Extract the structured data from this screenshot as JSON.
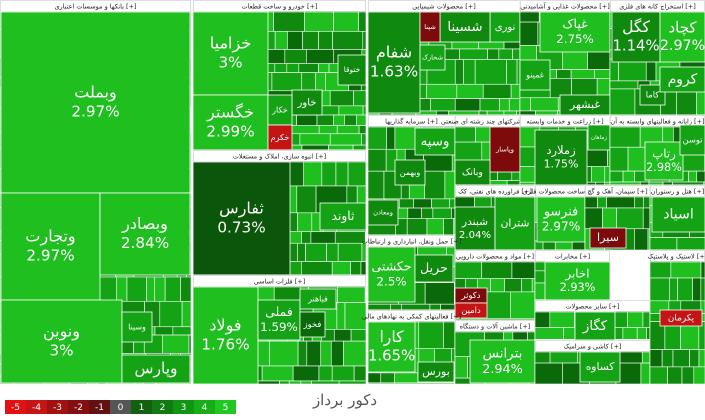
{
  "sectors": [
    {
      "title": "بانکها و موسسات اعتباری [+]",
      "tiles": [
        {
          "name": "وبملت",
          "change": "2.97%"
        },
        {
          "name": "وتجارت",
          "change": "2.97%"
        },
        {
          "name": "وبصادر",
          "change": "2.84%"
        },
        {
          "name": "ونوین",
          "change": "3%"
        },
        {
          "name": "وسینا"
        },
        {
          "name": "وپارس"
        }
      ]
    },
    {
      "title": "خودرو و ساخت قطعات [+]",
      "tiles": [
        {
          "name": "خزامیا",
          "change": "3%"
        },
        {
          "name": "خگستر",
          "change": "2.99%"
        },
        {
          "name": "خاور"
        },
        {
          "name": "خکار"
        },
        {
          "name": "خکرم"
        },
        {
          "name": "ختوقا"
        }
      ]
    },
    {
      "title": "انبوه سازی، املاک و مستغلات [+]",
      "tiles": [
        {
          "name": "ثفارس",
          "change": "0.73%"
        },
        {
          "name": "ثاوند"
        }
      ]
    },
    {
      "title": "فلزات اساسی [+]",
      "tiles": [
        {
          "name": "فولاد",
          "change": "1.76%"
        },
        {
          "name": "فملی",
          "change": "1.59%"
        },
        {
          "name": "فخوز"
        },
        {
          "name": "فباهنر"
        }
      ]
    },
    {
      "title": "محصولات شیمیایی [+]",
      "tiles": [
        {
          "name": "شفام",
          "change": "1.63%"
        },
        {
          "name": "نوری"
        },
        {
          "name": "شسینا"
        },
        {
          "name": "شپنا"
        },
        {
          "name": "شخارک"
        }
      ]
    },
    {
      "title": "محصولات غذایی و آشامیدنی [+]",
      "tiles": [
        {
          "name": "غپاک",
          "change": "2.75%"
        },
        {
          "name": "غمینو"
        },
        {
          "name": "غبشهر"
        }
      ]
    },
    {
      "title": "استخراج کانه های فلزی [+]",
      "tiles": [
        {
          "name": "کگل",
          "change": "1.14%"
        },
        {
          "name": "کچاد",
          "change": "2.97%"
        },
        {
          "name": "کاما"
        },
        {
          "name": "کروم"
        }
      ]
    },
    {
      "title": "سرمایه گذاریها [+]",
      "tiles": [
        {
          "name": "وبهمن"
        },
        {
          "name": "وسپه"
        },
        {
          "name": "ومعادن"
        }
      ]
    },
    {
      "title": "شرکتهای چند رشته ای صنعتی [+]",
      "tiles": [
        {
          "name": "وپاسار"
        },
        {
          "name": "وبانک"
        }
      ]
    },
    {
      "title": "زراعت و خدمات وابسته [+]",
      "tiles": [
        {
          "name": "زملارد",
          "change": "1.75%"
        },
        {
          "name": "زماهان"
        }
      ]
    },
    {
      "title": "رایانه و فعالیتهای وابسته به آن [+]",
      "tiles": [
        {
          "name": "رتاپ",
          "change": "2.98%"
        },
        {
          "name": "توسن"
        }
      ]
    },
    {
      "title": "فراورده های نفتی، کک [+]",
      "tiles": [
        {
          "name": "شبندر",
          "change": "2.04%"
        },
        {
          "name": "شتران"
        }
      ]
    },
    {
      "title": "ساخت محصولات فلزی [+]",
      "tiles": [
        {
          "name": "فنرسو",
          "change": "2.97%"
        }
      ]
    },
    {
      "title": "سیمان، آهک و گچ [+]",
      "tiles": [
        {
          "name": "سیرا"
        }
      ]
    },
    {
      "title": "هتل و رستوران [+]",
      "tiles": [
        {
          "name": "اسیاد"
        }
      ]
    },
    {
      "title": "حمل ونقل، انبارداری و ارتباطات [+]",
      "tiles": [
        {
          "name": "حکشتی",
          "change": "2.5%"
        },
        {
          "name": "حریل"
        }
      ]
    },
    {
      "title": "مواد و محصولات دارویی [+]",
      "tiles": [
        {
          "name": "دکوثر"
        },
        {
          "name": "دامین"
        }
      ]
    },
    {
      "title": "فعالیتهای کمکی به نهادهای مالی [+]",
      "tiles": [
        {
          "name": "کارا",
          "change": "1.65%"
        },
        {
          "name": "بورس"
        }
      ]
    },
    {
      "title": "ماشین آلات و دستگاه [+]",
      "tiles": [
        {
          "name": "بترانس",
          "change": "2.94%"
        }
      ]
    },
    {
      "title": "مخابرات [+]",
      "tiles": [
        {
          "name": "اخابر",
          "change": "2.93%"
        }
      ]
    },
    {
      "title": "سایر محصولات [+]",
      "tiles": [
        {
          "name": "کگاز"
        }
      ]
    },
    {
      "title": "کاشی و سرامیک [+]",
      "tiles": [
        {
          "name": "کساوه"
        }
      ]
    },
    {
      "title": "لاستیک و پلاستیک [+]",
      "tiles": [
        {
          "name": "پکرمان"
        }
      ]
    }
  ],
  "legend": [
    "-5",
    "-4",
    "-3",
    "-2",
    "-1",
    "0",
    "1",
    "2",
    "3",
    "4",
    "5"
  ],
  "watermark": "دکور برداز"
}
